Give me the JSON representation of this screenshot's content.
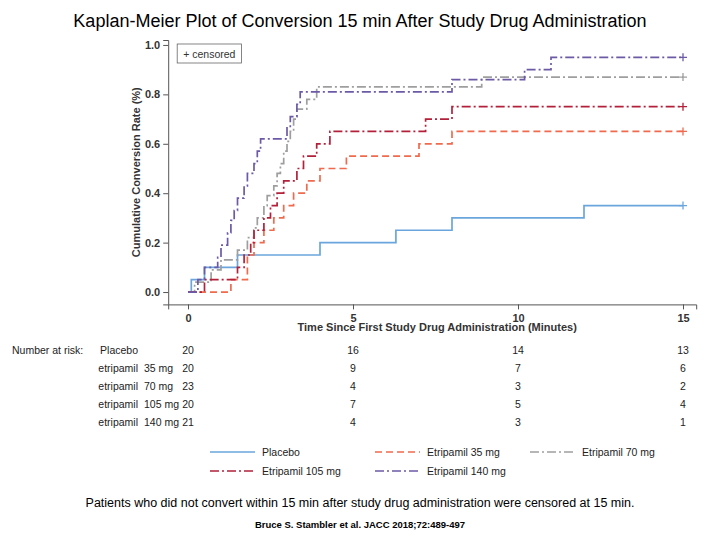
{
  "chart_data": {
    "type": "line",
    "title": "Kaplan-Meier Plot of Conversion 15 min After Study Drug Administration",
    "x_label": "Time Since First Study Drug Administration (Minutes)",
    "y_label": "Cumulative Conversion Rate (%)",
    "xlim": [
      -0.6,
      15.4
    ],
    "xticks": [
      0,
      5,
      10,
      15
    ],
    "ylim": [
      -0.05,
      1.02
    ],
    "yticks": [
      {
        "value": 0,
        "label": "0.0"
      },
      0.2,
      0.4,
      0.6,
      0.8,
      {
        "value": 1,
        "label": "1.0"
      }
    ],
    "grid": false,
    "legend": "bottom",
    "series": [
      {
        "name": "Placebo",
        "color": "#6aa6dd",
        "line_style": "solid",
        "x": [
          0,
          0.1,
          0.5,
          1.5,
          4.0,
          6.3,
          8.0,
          12.0,
          15
        ],
        "values": [
          0,
          0.05,
          0.1,
          0.15,
          0.2,
          0.25,
          0.3,
          0.35,
          0.35
        ]
      },
      {
        "name": "Etripamil 35 mg",
        "color": "#f06a4d",
        "line_style": "dashed",
        "x": [
          0,
          1.3,
          1.8,
          2.0,
          2.3,
          2.6,
          2.9,
          3.2,
          3.6,
          4.0,
          4.8,
          7.0,
          8.0,
          15
        ],
        "values": [
          0,
          0.05,
          0.15,
          0.2,
          0.25,
          0.3,
          0.35,
          0.4,
          0.45,
          0.5,
          0.55,
          0.6,
          0.65,
          0.65
        ]
      },
      {
        "name": "Etripamil 70 mg",
        "color": "#9e9e9e",
        "line_style": "dashdot",
        "x": [
          0,
          0.2,
          0.7,
          1.0,
          1.5,
          1.8,
          2.0,
          2.1,
          2.3,
          2.4,
          2.6,
          2.7,
          2.8,
          2.9,
          3.0,
          3.1,
          3.2,
          3.3,
          3.6,
          3.9,
          8.9,
          15
        ],
        "values": [
          0,
          0.04,
          0.09,
          0.13,
          0.17,
          0.22,
          0.26,
          0.3,
          0.35,
          0.39,
          0.43,
          0.48,
          0.52,
          0.57,
          0.61,
          0.65,
          0.7,
          0.74,
          0.78,
          0.83,
          0.87,
          0.87
        ]
      },
      {
        "name": "Etripamil 105 mg",
        "color": "#b3203a",
        "line_style": "dashdot",
        "x": [
          0,
          0.5,
          1.5,
          1.7,
          1.9,
          2.0,
          2.3,
          2.5,
          2.7,
          2.9,
          3.3,
          3.5,
          3.9,
          4.3,
          7.2,
          8.0,
          15
        ],
        "values": [
          0,
          0.05,
          0.1,
          0.15,
          0.2,
          0.25,
          0.3,
          0.35,
          0.4,
          0.45,
          0.5,
          0.55,
          0.6,
          0.65,
          0.7,
          0.75,
          0.75
        ]
      },
      {
        "name": "Etripamil 140 mg",
        "color": "#6c5aa6",
        "line_style": "dashdot",
        "x": [
          0,
          0.3,
          0.5,
          0.9,
          1.0,
          1.2,
          1.3,
          1.4,
          1.5,
          1.7,
          1.8,
          2.0,
          2.1,
          2.2,
          3.0,
          3.1,
          3.3,
          3.4,
          8.0,
          10.2,
          11.0,
          15
        ],
        "values": [
          0,
          0.05,
          0.1,
          0.14,
          0.19,
          0.24,
          0.29,
          0.33,
          0.38,
          0.43,
          0.48,
          0.52,
          0.57,
          0.62,
          0.67,
          0.71,
          0.76,
          0.81,
          0.86,
          0.9,
          0.95,
          0.95
        ]
      }
    ],
    "censoring": {
      "label": "+ censored",
      "time": 15
    },
    "risk_table": {
      "label": "Number at risk:",
      "times": [
        0,
        5,
        10,
        15
      ],
      "rows": [
        {
          "name": "Placebo",
          "counts": [
            20,
            16,
            14,
            13
          ]
        },
        {
          "name": "etripamil",
          "dose": "35 mg",
          "counts": [
            20,
            9,
            7,
            6
          ]
        },
        {
          "name": "etripamil",
          "dose": "70 mg",
          "counts": [
            23,
            4,
            3,
            2
          ]
        },
        {
          "name": "etripamil",
          "dose": "105 mg",
          "counts": [
            20,
            7,
            5,
            4
          ]
        },
        {
          "name": "etripamil",
          "dose": "140 mg",
          "counts": [
            21,
            4,
            3,
            1
          ]
        }
      ]
    },
    "footnote": "Patients who did not convert within 15 min after study drug administration were censored at 15 min.",
    "source": "Bruce S. Stambler et al. JACC 2018;72:489-497"
  }
}
